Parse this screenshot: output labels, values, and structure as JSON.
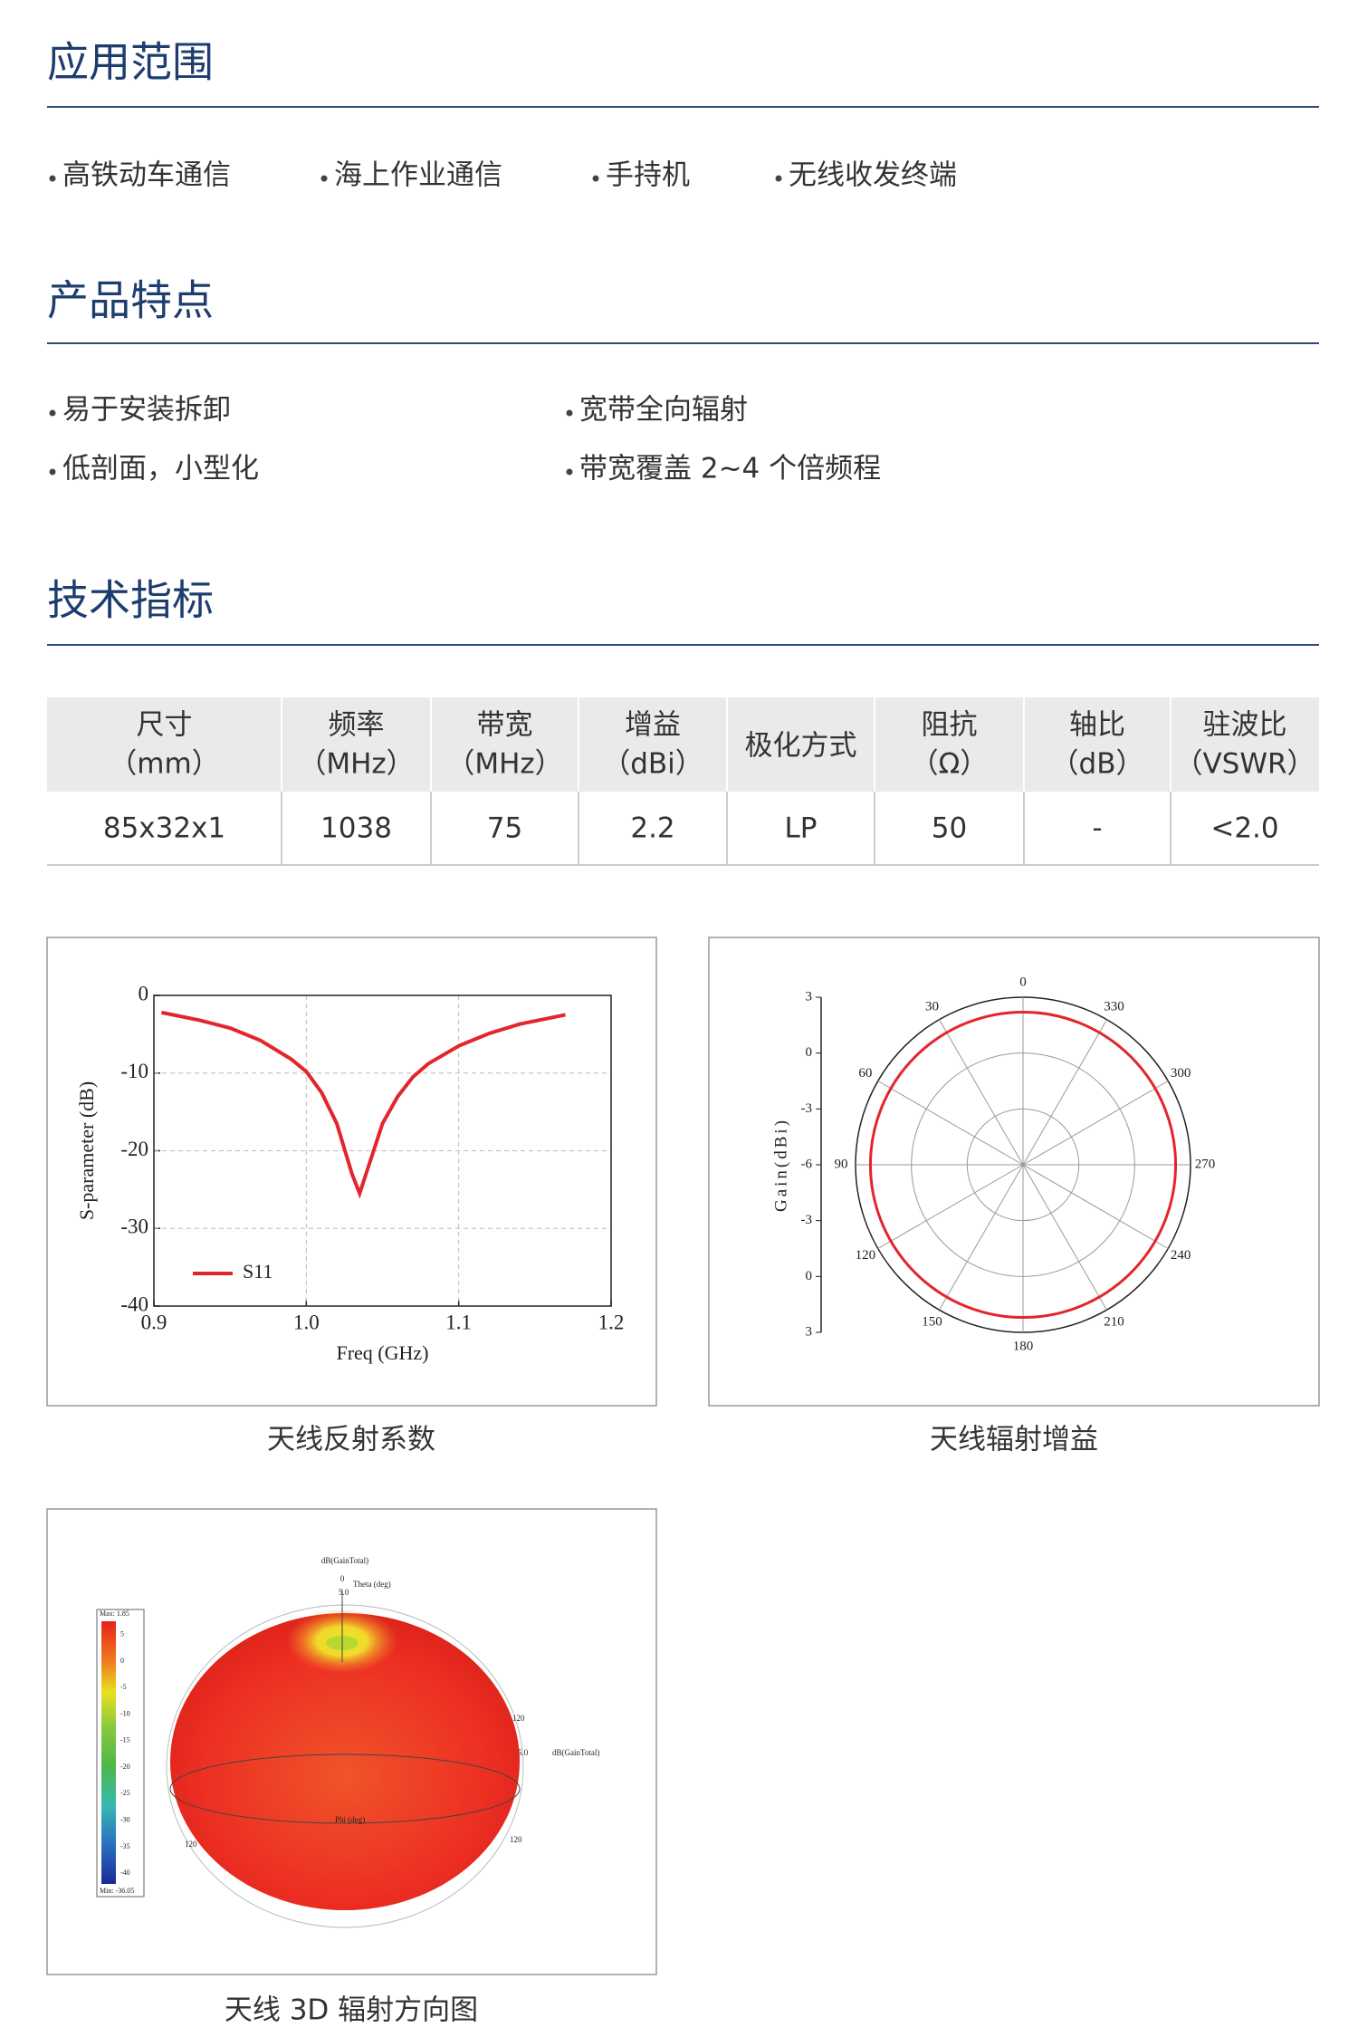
{
  "sections": [
    {
      "title": "应用范围"
    },
    {
      "title": "产品特点"
    },
    {
      "title": "技术指标"
    }
  ],
  "applications": [
    "高铁动车通信",
    "海上作业通信",
    "手持机",
    "无线收发终端"
  ],
  "features": [
    "易于安装拆卸",
    "宽带全向辐射",
    "低剖面，小型化",
    "带宽覆盖 2~4 个倍频程"
  ],
  "table": {
    "header": [
      [
        "尺寸",
        "（mm）"
      ],
      [
        "频率",
        "（MHz）"
      ],
      [
        "带宽",
        "（MHz）"
      ],
      [
        "增益",
        "（dBi）"
      ],
      [
        "极化方式"
      ],
      [
        "阻抗",
        "（Ω）"
      ],
      [
        "轴比",
        "（dB）"
      ],
      [
        "驻波比",
        "（VSWR）"
      ]
    ],
    "rows": [
      [
        "85x32x1",
        "1038",
        "75",
        "2.2",
        "LP",
        "50",
        "-",
        "<2.0"
      ]
    ]
  },
  "charts": [
    {
      "type": "line",
      "caption": "天线反射系数",
      "xlabel": "Freq (GHz)",
      "ylabel": "S-parameter (dB)",
      "xlim": [
        0.9,
        1.2
      ],
      "ylim": [
        -40,
        0
      ],
      "xticks": [
        0.9,
        {
          "value": 1,
          "label": "1.0"
        },
        1.1,
        1.2
      ],
      "yticks": [
        0,
        -10,
        -20,
        -30,
        -40
      ],
      "grid": true,
      "x": [
        0.905,
        0.93,
        0.95,
        0.97,
        0.99,
        1.0,
        1.01,
        1.02,
        1.03,
        1.035,
        1.04,
        1.05,
        1.06,
        1.07,
        1.08,
        1.1,
        1.12,
        1.14,
        1.17
      ],
      "series": [
        {
          "name": "S11",
          "color": "#e2262b",
          "values": [
            -2.2,
            -3.2,
            -4.2,
            -5.8,
            -8.2,
            -9.8,
            -12.5,
            -16.5,
            -23,
            -25.5,
            -22.5,
            -16.5,
            -13,
            -10.5,
            -8.8,
            -6.5,
            -4.9,
            -3.7,
            -2.5
          ]
        }
      ]
    },
    {
      "type": "polar",
      "caption": "天线辐射增益",
      "ylabel": "Gain(dBi)",
      "rlim": [
        -6,
        3
      ],
      "rticks": [
        3,
        0,
        -3,
        -6,
        -3,
        0,
        3
      ],
      "theta_ticks": [
        0,
        30,
        60,
        90,
        120,
        150,
        180,
        210,
        240,
        270,
        300,
        330
      ],
      "grid": true,
      "value": 2.2,
      "color": "#e2262b"
    },
    {
      "type": "3d",
      "caption": "天线 3D 辐射方向图",
      "title": "dB(GainTotal)",
      "theta_label": "Theta (deg)",
      "phi_label": "Phi (deg)",
      "z_label": "0",
      "scale_label": "5.0",
      "right_scale_label": "5.0",
      "right_label": "dB(GainTotal)",
      "side_labels": [
        "120",
        "120",
        "120"
      ],
      "max_label": "Max: 1.85",
      "min_label": "Min: -36.05",
      "clim": [
        -42,
        7.5
      ],
      "colorbar_ticks": [
        5,
        0,
        -5,
        -10,
        -15,
        -20,
        -25,
        -30,
        -35,
        -40
      ]
    }
  ]
}
